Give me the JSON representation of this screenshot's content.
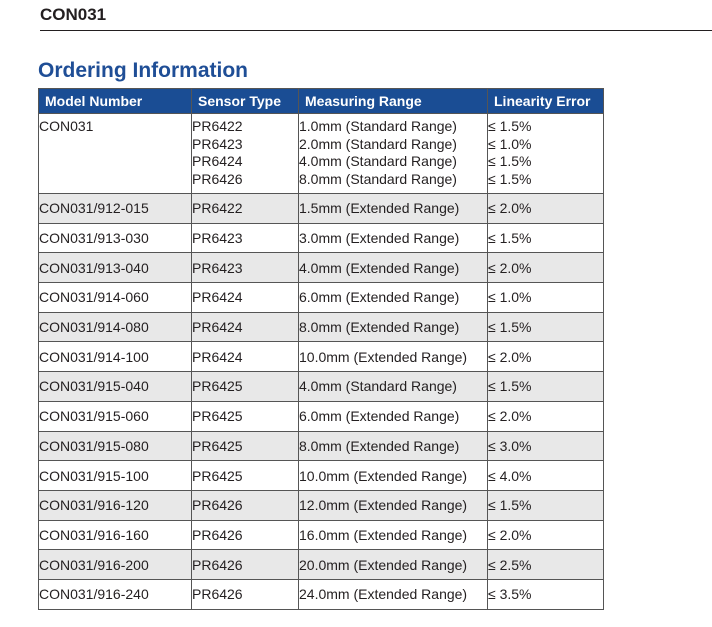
{
  "document": {
    "id": "CON031",
    "section_title": "Ordering Information"
  },
  "table": {
    "headers": [
      "Model Number",
      "Sensor Type",
      "Measuring Range",
      "Linearity Error"
    ],
    "first_row": {
      "model": "CON031",
      "sensors": [
        "PR6422",
        "PR6423",
        "PR6424",
        "PR6426"
      ],
      "ranges": [
        "1.0mm (Standard Range)",
        "2.0mm (Standard Range)",
        "4.0mm (Standard Range)",
        "8.0mm (Standard Range)"
      ],
      "linearity": [
        "≤ 1.5%",
        "≤ 1.0%",
        "≤ 1.5%",
        "≤ 1.5%"
      ]
    },
    "rows": [
      {
        "model": "CON031/912-015",
        "sensor": "PR6422",
        "range": "1.5mm (Extended Range)",
        "linearity": "≤ 2.0%"
      },
      {
        "model": "CON031/913-030",
        "sensor": "PR6423",
        "range": "3.0mm (Extended Range)",
        "linearity": "≤ 1.5%"
      },
      {
        "model": "CON031/913-040",
        "sensor": "PR6423",
        "range": "4.0mm (Extended Range)",
        "linearity": "≤ 2.0%"
      },
      {
        "model": "CON031/914-060",
        "sensor": "PR6424",
        "range": "6.0mm (Extended Range)",
        "linearity": "≤ 1.0%"
      },
      {
        "model": "CON031/914-080",
        "sensor": "PR6424",
        "range": "8.0mm (Extended Range)",
        "linearity": "≤ 1.5%"
      },
      {
        "model": "CON031/914-100",
        "sensor": "PR6424",
        "range": "10.0mm (Extended Range)",
        "linearity": "≤ 2.0%"
      },
      {
        "model": "CON031/915-040",
        "sensor": "PR6425",
        "range": "4.0mm (Standard Range)",
        "linearity": "≤ 1.5%"
      },
      {
        "model": "CON031/915-060",
        "sensor": "PR6425",
        "range": "6.0mm (Extended Range)",
        "linearity": "≤ 2.0%"
      },
      {
        "model": "CON031/915-080",
        "sensor": "PR6425",
        "range": "8.0mm (Extended Range)",
        "linearity": "≤ 3.0%"
      },
      {
        "model": "CON031/915-100",
        "sensor": "PR6425",
        "range": "10.0mm (Extended Range)",
        "linearity": "≤ 4.0%"
      },
      {
        "model": "CON031/916-120",
        "sensor": "PR6426",
        "range": "12.0mm (Extended Range)",
        "linearity": "≤ 1.5%"
      },
      {
        "model": "CON031/916-160",
        "sensor": "PR6426",
        "range": "16.0mm (Extended Range)",
        "linearity": "≤ 2.0%"
      },
      {
        "model": "CON031/916-200",
        "sensor": "PR6426",
        "range": "20.0mm (Extended Range)",
        "linearity": "≤ 2.5%"
      },
      {
        "model": "CON031/916-240",
        "sensor": "PR6426",
        "range": "24.0mm (Extended Range)",
        "linearity": "≤ 3.5%"
      }
    ]
  },
  "colors": {
    "header_bg": "#1a4d94",
    "title": "#1f4e96",
    "alt_row_bg": "#e8e8e8"
  }
}
